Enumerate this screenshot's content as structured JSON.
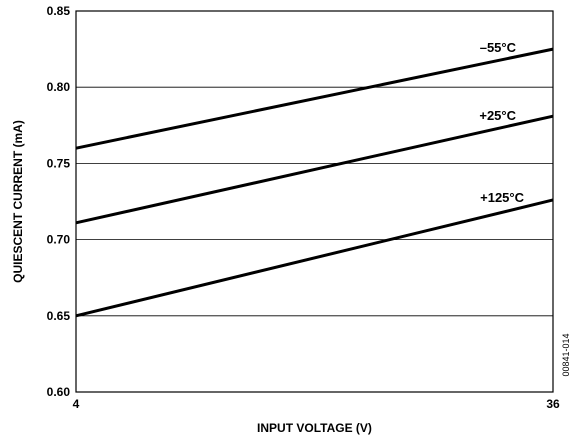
{
  "chart_data": {
    "type": "line",
    "xlabel": "INPUT VOLTAGE (V)",
    "ylabel": "QUIESCENT CURRENT (mA)",
    "xlim": [
      4,
      36
    ],
    "ylim": [
      0.6,
      0.85
    ],
    "x_ticks": [
      "4",
      "36"
    ],
    "y_ticks": [
      "0.60",
      "0.65",
      "0.70",
      "0.75",
      "0.80",
      "0.85"
    ],
    "y_tick_values": [
      0.6,
      0.65,
      0.7,
      0.75,
      0.8,
      0.85
    ],
    "grid": true,
    "series": [
      {
        "name": "–55°C",
        "x": [
          4,
          36
        ],
        "y": [
          0.76,
          0.825
        ]
      },
      {
        "name": "+25°C",
        "x": [
          4,
          36
        ],
        "y": [
          0.711,
          0.781
        ]
      },
      {
        "name": "+125°C",
        "x": [
          4,
          36
        ],
        "y": [
          0.65,
          0.726
        ]
      }
    ],
    "figure_code": "00841-014"
  }
}
